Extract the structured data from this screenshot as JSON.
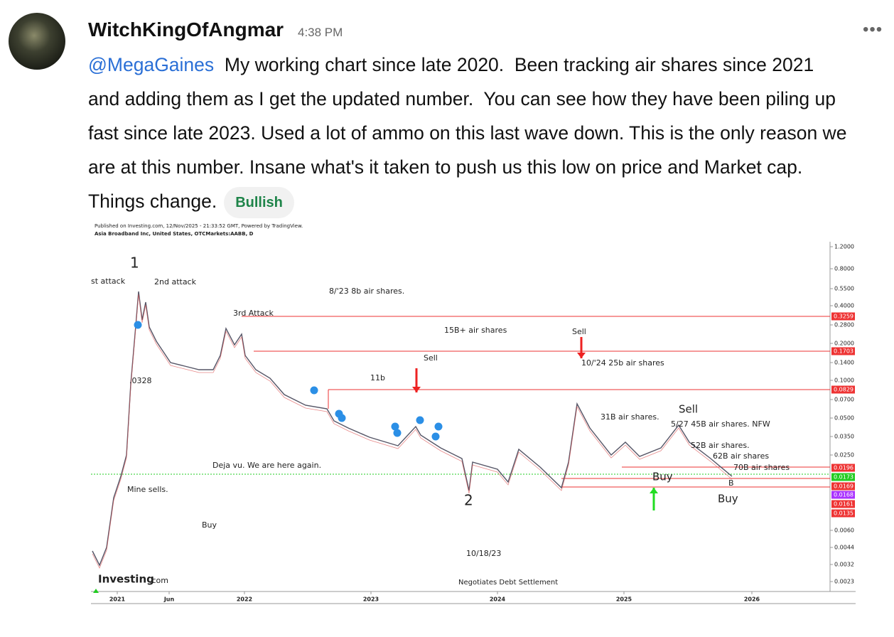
{
  "post": {
    "username": "WitchKingOfAngmar",
    "time": "4:38 PM",
    "mention": "@MegaGaines",
    "text": "My working chart since late 2020.  Been tracking air shares since 2021 and adding them as I get the updated number.  You can see how they have been piling up fast since late 2023. Used a lot of ammo on this last wave down. This is the only reason we are at this number. Insane what's it taken to push us this low on price and Market cap. Things change.",
    "tag": "Bullish"
  },
  "image": {
    "header": [
      "Published on Investing.com, 12/Nov/2025 - 21:33:52 GMT, Powered by TradingView.",
      "Asia Broadband Inc, United States, OTCMarkets:AABB, D"
    ],
    "annotations": [
      "1",
      "st attack",
      "2nd attack",
      "8/'23 8b air shares.",
      "3rd Attack",
      "15B+ air shares",
      "Sell",
      "Sell",
      "10/'24 25b air shares",
      ".0328",
      "11b",
      "31B air shares.",
      "Sell",
      "5/27 45B air shares. NFW",
      "52B air shares.",
      "62B air shares",
      "70B air shares",
      "Deja vu. We are here again.",
      "Buy",
      "B",
      "Mine sells.",
      "2",
      "Buy",
      "Buy",
      "10/18/23",
      "Negotiates Debt Settlement"
    ],
    "y_axis_labels": [
      "1.2000",
      "0.8000",
      "0.5500",
      "0.4000",
      "0.2800",
      "0.2000",
      "0.1400",
      "0.1000",
      "0.0700",
      "0.0500",
      "0.0350",
      "0.0250",
      "0.0060",
      "0.0044",
      "0.0032",
      "0.0023"
    ],
    "price_tags": [
      "0.3259",
      "0.1703",
      "0.0829",
      "0.0196",
      "0.0173",
      "0.0169",
      "0.0168",
      "0.0161",
      "0.0135"
    ],
    "x_axis_labels": [
      "2021",
      "Jun",
      "2022",
      "2023",
      "2024",
      "2025",
      "2026"
    ],
    "logo": "Investing",
    "logo_suffix": ".com"
  }
}
